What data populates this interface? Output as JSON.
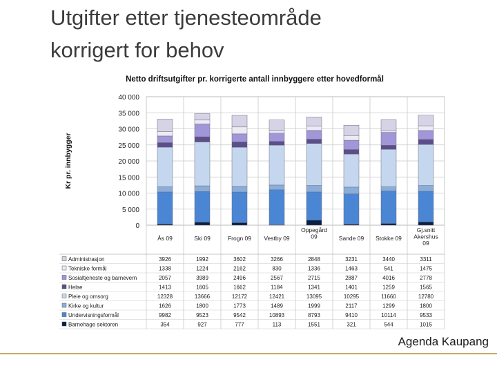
{
  "slide": {
    "title_line1": "Utgifter etter tjenesteområde",
    "title_line2": "korrigert for behov",
    "footer": "Agenda Kaupang"
  },
  "chart_data": {
    "type": "bar",
    "stacked": true,
    "title": "Netto driftsutgifter pr. korrigerte antall innbyggere etter hovedformål",
    "ylabel": "Kr pr. innbygger",
    "ylim": [
      0,
      40000
    ],
    "yticks": [
      "0",
      "5 000",
      "10 000",
      "15 000",
      "20 000",
      "25 000",
      "30 000",
      "35 000",
      "40 000"
    ],
    "grid": true,
    "categories": [
      [
        "Ås 09"
      ],
      [
        "Ski 09"
      ],
      [
        "Frogn 09"
      ],
      [
        "Vestby 09"
      ],
      [
        "Oppegård",
        "09"
      ],
      [
        "Sande 09"
      ],
      [
        "Stokke 09"
      ],
      [
        "Gj.snitt",
        "Akershus",
        "09"
      ]
    ],
    "series": [
      {
        "name": "Barnehage sektoren",
        "color": "#0a1f44",
        "values": [
          354,
          927,
          777,
          113,
          1551,
          321,
          544,
          1015
        ]
      },
      {
        "name": "Undervisningsformål",
        "color": "#4a86d4",
        "values": [
          9982,
          9523,
          9542,
          10893,
          8793,
          9410,
          10114,
          9533
        ]
      },
      {
        "name": "Kirke og kultur",
        "color": "#8aaedb",
        "values": [
          1626,
          1800,
          1773,
          1489,
          1999,
          2117,
          1299,
          1800
        ]
      },
      {
        "name": "Pleie og omsorg",
        "color": "#c5d7ee",
        "values": [
          12328,
          13666,
          12172,
          12421,
          13095,
          10295,
          11660,
          12780
        ]
      },
      {
        "name": "Helse",
        "color": "#5c4e8a",
        "values": [
          1413,
          1605,
          1662,
          1184,
          1341,
          1401,
          1259,
          1565
        ]
      },
      {
        "name": "Sosialtjeneste og barnevern",
        "color": "#a196d8",
        "values": [
          2057,
          3989,
          2496,
          2567,
          2715,
          2887,
          4016,
          2778
        ]
      },
      {
        "name": "Tekniske formål",
        "color": "#ecebf4",
        "values": [
          1338,
          1224,
          2162,
          830,
          1336,
          1463,
          541,
          1475
        ]
      },
      {
        "name": "Administrasjon",
        "color": "#d6d3e6",
        "values": [
          3926,
          1992,
          3602,
          3266,
          2848,
          3231,
          3440,
          3311
        ]
      }
    ],
    "table_rows_order": [
      "Administrasjon",
      "Tekniske formål",
      "Sosialtjeneste og barnevern",
      "Helse",
      "Pleie og omsorg",
      "Kirke og kultur",
      "Undervisningsformål",
      "Barnehage sektoren"
    ],
    "table_row_labels": {
      "Administrasjon": "Administrasjon",
      "Tekniske formål": "Tekniske formål",
      "Sosialtjeneste og barnevern": "Sosialtjeneste og barnevern",
      "Helse": "Helse",
      "Pleie og omsorg": "Pleie og omsorg",
      "Kirke og kultur": "Kirke og kultur",
      "Undervisningsformål": "Undervisningsformål",
      "Barnehage sektoren": "Barnehage sektoren"
    }
  }
}
